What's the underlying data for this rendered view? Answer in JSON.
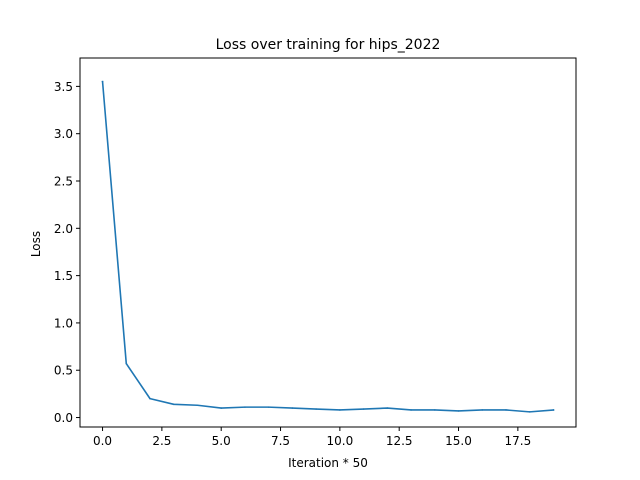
{
  "chart_data": {
    "type": "line",
    "title": "Loss over training for hips_2022",
    "xlabel": "Iteration * 50",
    "ylabel": "Loss",
    "xlim": [
      -0.95,
      19.95
    ],
    "ylim": [
      -0.1,
      3.8
    ],
    "xticks": [
      0.0,
      2.5,
      5.0,
      7.5,
      10.0,
      12.5,
      15.0,
      17.5
    ],
    "xtick_labels": [
      "0.0",
      "2.5",
      "5.0",
      "7.5",
      "10.0",
      "12.5",
      "15.0",
      "17.5"
    ],
    "yticks": [
      0.0,
      0.5,
      1.0,
      1.5,
      2.0,
      2.5,
      3.0,
      3.5
    ],
    "ytick_labels": [
      "0.0",
      "0.5",
      "1.0",
      "1.5",
      "2.0",
      "2.5",
      "3.0",
      "3.5"
    ],
    "grid": false,
    "series": [
      {
        "color": "#1f77b4",
        "x": [
          0,
          1,
          2,
          3,
          4,
          5,
          6,
          7,
          8,
          9,
          10,
          11,
          12,
          13,
          14,
          15,
          16,
          17,
          18,
          19
        ],
        "y": [
          3.55,
          0.57,
          0.2,
          0.14,
          0.13,
          0.1,
          0.11,
          0.11,
          0.1,
          0.09,
          0.08,
          0.09,
          0.1,
          0.08,
          0.08,
          0.07,
          0.08,
          0.08,
          0.06,
          0.08
        ]
      }
    ]
  }
}
